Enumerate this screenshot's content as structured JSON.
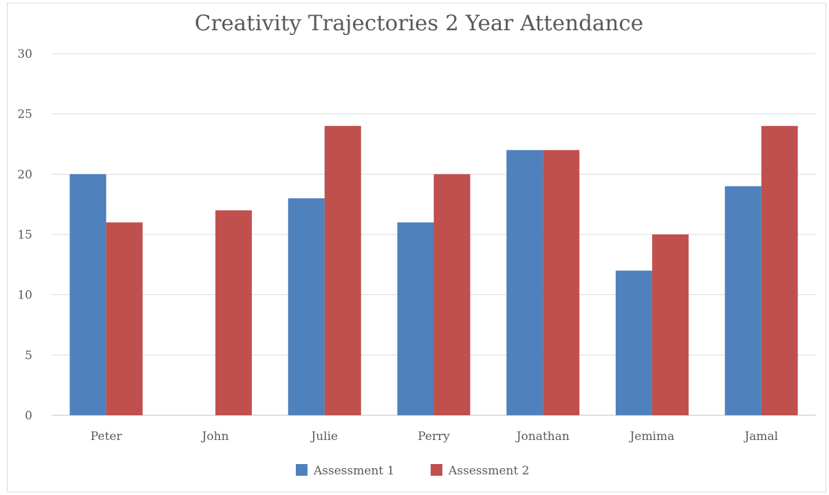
{
  "chart_data": {
    "type": "bar",
    "title": "Creativity Trajectories 2 Year Attendance",
    "xlabel": "",
    "ylabel": "",
    "categories": [
      "Peter",
      "John",
      "Julie",
      "Perry",
      "Jonathan",
      "Jemima",
      "Jamal"
    ],
    "series": [
      {
        "name": "Assessment 1",
        "color": "#4f81bd",
        "values": [
          20,
          0,
          18,
          16,
          22,
          12,
          19
        ]
      },
      {
        "name": "Assessment 2",
        "color": "#c0504d",
        "values": [
          16,
          17,
          24,
          20,
          22,
          15,
          24
        ]
      }
    ],
    "ylim": [
      0,
      30
    ],
    "yticks": [
      0,
      5,
      10,
      15,
      20,
      25,
      30
    ],
    "grid": true,
    "legend_position": "bottom"
  }
}
